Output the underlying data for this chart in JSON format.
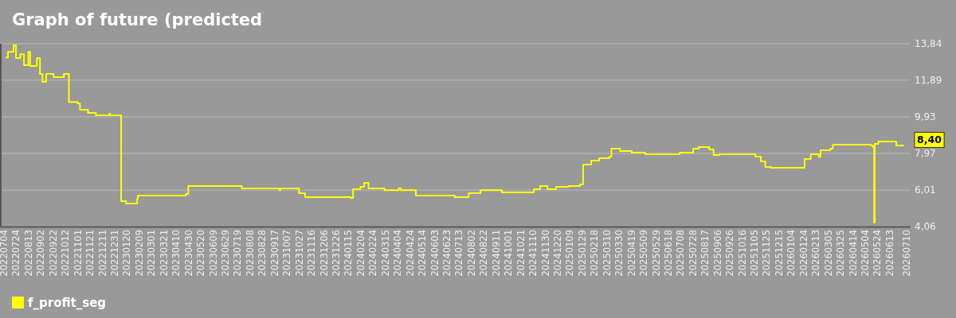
{
  "chart_data": {
    "type": "step",
    "title": "Graph of future (predicted",
    "xlim": [
      "2022-06-26",
      "2026-07-14"
    ],
    "ylim": [
      4.06,
      13.84
    ],
    "yticks": [
      {
        "value": 4.06,
        "label": "4,06"
      },
      {
        "value": 6.01,
        "label": "6,01"
      },
      {
        "value": 7.97,
        "label": "7,97"
      },
      {
        "value": 9.93,
        "label": "9,93"
      },
      {
        "value": 11.89,
        "label": "11,89"
      },
      {
        "value": 13.84,
        "label": "13,84"
      }
    ],
    "xticks": [
      {
        "value": "2022-07-04",
        "label": "20220704"
      },
      {
        "value": "2022-07-24",
        "label": "20220724"
      },
      {
        "value": "2022-08-13",
        "label": "20220813"
      },
      {
        "value": "2022-09-02",
        "label": "20220902"
      },
      {
        "value": "2022-09-22",
        "label": "20220922"
      },
      {
        "value": "2022-10-12",
        "label": "20221012"
      },
      {
        "value": "2022-11-01",
        "label": "20221101"
      },
      {
        "value": "2022-11-21",
        "label": "20221121"
      },
      {
        "value": "2022-12-11",
        "label": "20221211"
      },
      {
        "value": "2022-12-31",
        "label": "20221231"
      },
      {
        "value": "2023-01-20",
        "label": "20230120"
      },
      {
        "value": "2023-02-09",
        "label": "20230209"
      },
      {
        "value": "2023-03-01",
        "label": "20230301"
      },
      {
        "value": "2023-03-21",
        "label": "20230321"
      },
      {
        "value": "2023-04-10",
        "label": "20230410"
      },
      {
        "value": "2023-04-30",
        "label": "20230430"
      },
      {
        "value": "2023-05-20",
        "label": "20230520"
      },
      {
        "value": "2023-06-09",
        "label": "20230609"
      },
      {
        "value": "2023-06-29",
        "label": "20230629"
      },
      {
        "value": "2023-07-19",
        "label": "20230719"
      },
      {
        "value": "2023-08-08",
        "label": "20230808"
      },
      {
        "value": "2023-08-28",
        "label": "20230828"
      },
      {
        "value": "2023-09-17",
        "label": "20230917"
      },
      {
        "value": "2023-10-07",
        "label": "20231007"
      },
      {
        "value": "2023-10-27",
        "label": "20231027"
      },
      {
        "value": "2023-11-16",
        "label": "20231116"
      },
      {
        "value": "2023-12-06",
        "label": "20231206"
      },
      {
        "value": "2023-12-26",
        "label": "20231226"
      },
      {
        "value": "2024-01-15",
        "label": "20240115"
      },
      {
        "value": "2024-02-04",
        "label": "20240204"
      },
      {
        "value": "2024-02-24",
        "label": "20240224"
      },
      {
        "value": "2024-03-15",
        "label": "20240315"
      },
      {
        "value": "2024-04-04",
        "label": "20240404"
      },
      {
        "value": "2024-04-24",
        "label": "20240424"
      },
      {
        "value": "2024-05-14",
        "label": "20240514"
      },
      {
        "value": "2024-06-03",
        "label": "20240603"
      },
      {
        "value": "2024-06-23",
        "label": "20240623"
      },
      {
        "value": "2024-07-13",
        "label": "20240713"
      },
      {
        "value": "2024-08-02",
        "label": "20240802"
      },
      {
        "value": "2024-08-22",
        "label": "20240822"
      },
      {
        "value": "2024-09-11",
        "label": "20240911"
      },
      {
        "value": "2024-10-01",
        "label": "20241001"
      },
      {
        "value": "2024-10-21",
        "label": "20241021"
      },
      {
        "value": "2024-11-10",
        "label": "20241110"
      },
      {
        "value": "2024-11-30",
        "label": "20241130"
      },
      {
        "value": "2024-12-20",
        "label": "20241220"
      },
      {
        "value": "2025-01-09",
        "label": "20250109"
      },
      {
        "value": "2025-01-29",
        "label": "20250129"
      },
      {
        "value": "2025-02-18",
        "label": "20250218"
      },
      {
        "value": "2025-03-10",
        "label": "20250310"
      },
      {
        "value": "2025-03-30",
        "label": "20250330"
      },
      {
        "value": "2025-04-19",
        "label": "20250419"
      },
      {
        "value": "2025-05-09",
        "label": "20250509"
      },
      {
        "value": "2025-05-29",
        "label": "20250529"
      },
      {
        "value": "2025-06-18",
        "label": "20250618"
      },
      {
        "value": "2025-07-08",
        "label": "20250708"
      },
      {
        "value": "2025-07-28",
        "label": "20250728"
      },
      {
        "value": "2025-08-17",
        "label": "20250817"
      },
      {
        "value": "2025-09-06",
        "label": "20250906"
      },
      {
        "value": "2025-09-26",
        "label": "20250926"
      },
      {
        "value": "2025-10-16",
        "label": "20251016"
      },
      {
        "value": "2025-11-05",
        "label": "20251105"
      },
      {
        "value": "2025-11-25",
        "label": "20251125"
      },
      {
        "value": "2025-12-15",
        "label": "20251215"
      },
      {
        "value": "2026-01-04",
        "label": "20260104"
      },
      {
        "value": "2026-01-24",
        "label": "20260124"
      },
      {
        "value": "2026-02-13",
        "label": "20260213"
      },
      {
        "value": "2026-03-05",
        "label": "20260305"
      },
      {
        "value": "2026-03-25",
        "label": "20260325"
      },
      {
        "value": "2026-04-14",
        "label": "20260414"
      },
      {
        "value": "2026-05-04",
        "label": "20260504"
      },
      {
        "value": "2026-05-24",
        "label": "20260524"
      },
      {
        "value": "2026-06-13",
        "label": "20260613"
      },
      {
        "value": "2026-07-10",
        "label": "20260710"
      }
    ],
    "x": [
      "2022-07-05",
      "2022-07-09",
      "2022-07-18",
      "2022-07-22",
      "2022-07-29",
      "2022-08-04",
      "2022-08-11",
      "2022-08-14",
      "2022-08-25",
      "2022-08-30",
      "2022-09-03",
      "2022-09-09",
      "2022-09-21",
      "2022-10-08",
      "2022-10-14",
      "2022-10-16",
      "2022-10-30",
      "2022-11-03",
      "2022-11-16",
      "2022-11-29",
      "2022-12-21",
      "2022-12-22",
      "2023-01-07",
      "2023-01-09",
      "2023-01-17",
      "2023-01-29",
      "2023-02-04",
      "2023-02-05",
      "2023-03-12",
      "2023-04-24",
      "2023-04-28",
      "2023-07-20",
      "2023-07-24",
      "2023-09-23",
      "2023-09-25",
      "2023-10-22",
      "2023-10-25",
      "2023-11-04",
      "2024-01-17",
      "2024-01-21",
      "2024-02-02",
      "2024-02-08",
      "2024-02-15",
      "2024-03-12",
      "2024-04-04",
      "2024-04-08",
      "2024-04-27",
      "2024-05-02",
      "2024-06-21",
      "2024-07-04",
      "2024-07-23",
      "2024-07-27",
      "2024-08-11",
      "2024-08-15",
      "2024-09-17",
      "2024-09-19",
      "2024-10-24",
      "2024-11-10",
      "2024-11-20",
      "2024-12-02",
      "2024-12-16",
      "2025-01-05",
      "2025-01-24",
      "2025-01-29",
      "2025-02-11",
      "2025-02-24",
      "2025-03-13",
      "2025-03-16",
      "2025-03-24",
      "2025-03-30",
      "2025-04-18",
      "2025-05-10",
      "2025-07-01",
      "2025-07-05",
      "2025-07-27",
      "2025-08-05",
      "2025-08-22",
      "2025-08-29",
      "2025-09-08",
      "2025-10-30",
      "2025-11-05",
      "2025-11-14",
      "2025-11-21",
      "2025-11-30",
      "2026-01-21",
      "2026-01-24",
      "2026-02-03",
      "2026-02-16",
      "2026-02-19",
      "2026-03-07",
      "2026-03-11",
      "2026-05-12",
      "2026-05-15",
      "2026-05-17",
      "2026-05-18",
      "2026-05-24",
      "2026-06-19",
      "2026-06-22",
      "2026-07-05"
    ],
    "series": [
      {
        "name": "f_profit_seg",
        "color": "#ffff00",
        "values": [
          13.11,
          13.4,
          13.75,
          13.07,
          13.28,
          12.69,
          13.4,
          12.65,
          13.07,
          12.22,
          11.8,
          12.22,
          12.05,
          12.22,
          12.22,
          10.73,
          10.65,
          10.31,
          10.14,
          10.01,
          10.1,
          10.01,
          10.01,
          5.42,
          5.29,
          5.29,
          5.55,
          5.72,
          5.72,
          5.8,
          6.23,
          6.23,
          6.1,
          6.01,
          6.1,
          6.1,
          5.85,
          5.63,
          5.59,
          6.06,
          6.19,
          6.4,
          6.1,
          6.01,
          6.1,
          6.01,
          6.01,
          5.72,
          5.72,
          5.63,
          5.63,
          5.85,
          5.85,
          6.01,
          6.01,
          5.89,
          5.89,
          6.06,
          6.23,
          6.06,
          6.19,
          6.23,
          6.31,
          7.38,
          7.59,
          7.72,
          7.8,
          8.23,
          8.23,
          8.1,
          8.01,
          7.93,
          7.93,
          8.01,
          8.23,
          8.31,
          8.18,
          7.89,
          7.93,
          7.93,
          7.8,
          7.55,
          7.25,
          7.21,
          7.21,
          7.67,
          7.93,
          7.8,
          8.14,
          8.23,
          8.44,
          8.4,
          8.31,
          4.27,
          8.48,
          8.61,
          8.61,
          8.4,
          8.4
        ]
      }
    ],
    "annotations": [
      "8,40"
    ],
    "grid": "y",
    "legend": "bottom left"
  }
}
